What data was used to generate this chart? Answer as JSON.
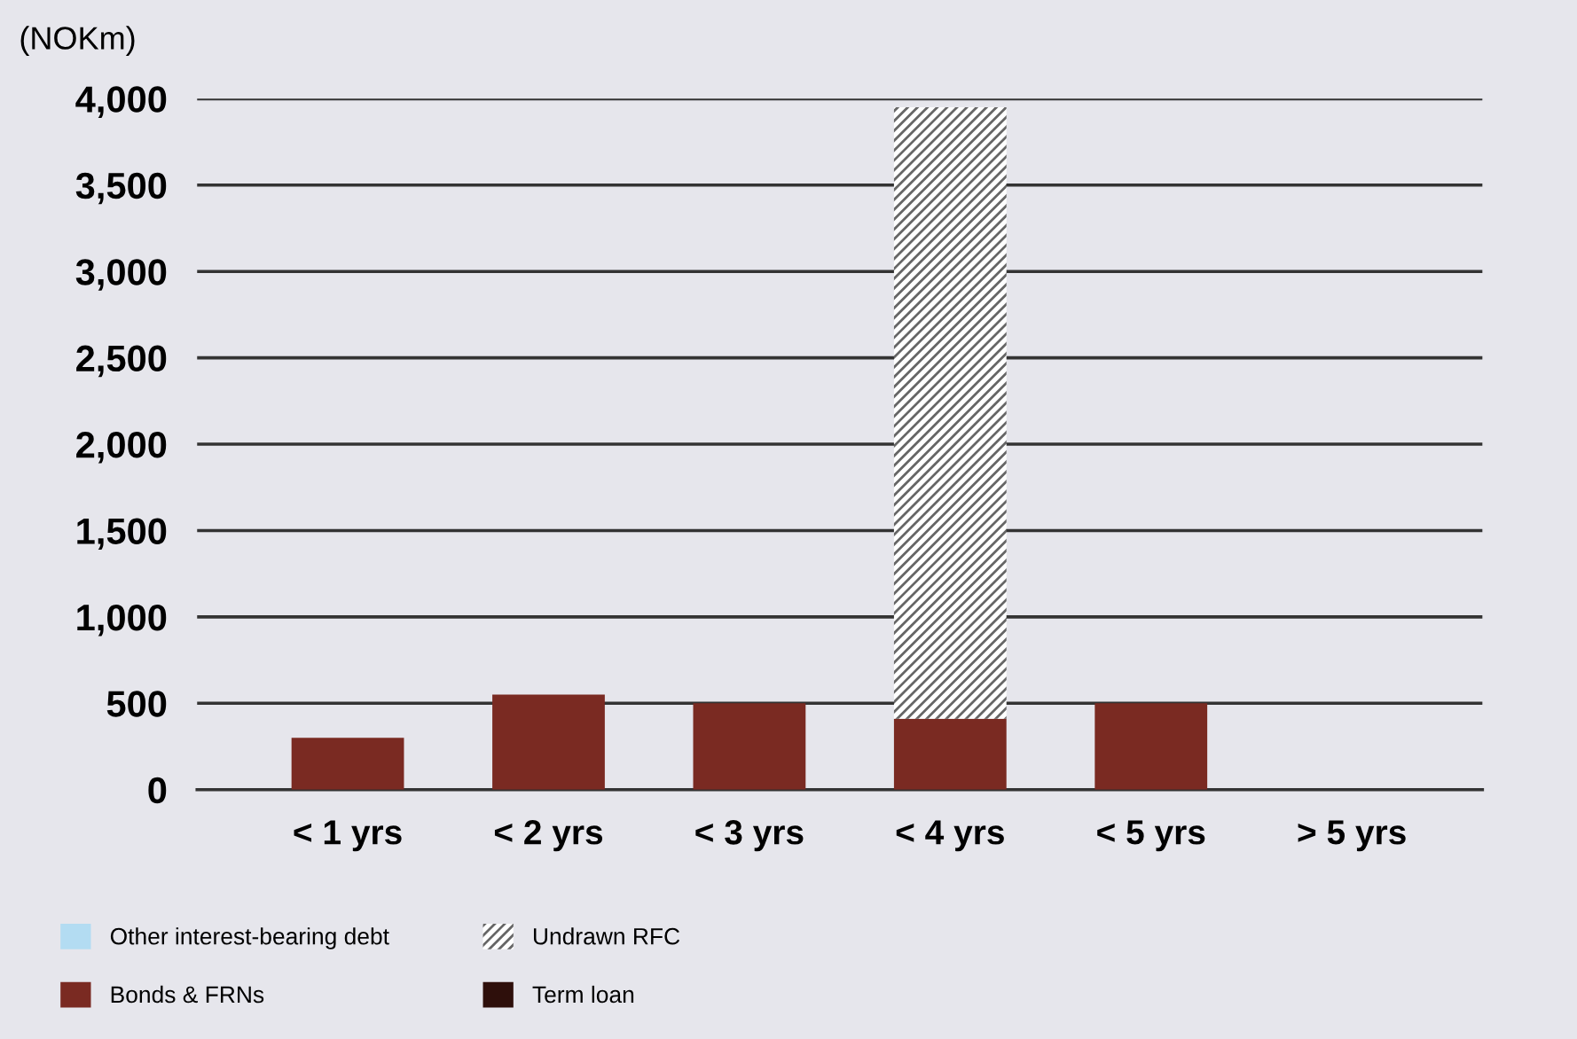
{
  "chart_data": {
    "type": "bar",
    "ylabel": "(NOKm)",
    "stacked": true,
    "categories": [
      "< 1 yrs",
      "< 2 yrs",
      "< 3 yrs",
      "< 4 yrs",
      "< 5 yrs",
      "> 5 yrs"
    ],
    "series": [
      {
        "name": "Other interest-bearing debt",
        "color": "#b3dcf2",
        "values": [
          0,
          0,
          0,
          0,
          0,
          0
        ]
      },
      {
        "name": "Bonds & FRNs",
        "color": "#7a2a22",
        "values": [
          300,
          550,
          500,
          410,
          500,
          0
        ]
      },
      {
        "name": "Undrawn RFC",
        "color": "#ffffff",
        "values": [
          0,
          0,
          0,
          3540,
          0,
          0
        ]
      },
      {
        "name": "Term loan",
        "color": "#2e0f0b",
        "values": [
          0,
          0,
          0,
          0,
          0,
          0
        ]
      }
    ],
    "ylim": [
      0,
      4000
    ],
    "yticks": [
      0,
      500,
      {
        "value": 1000,
        "label": "1,000"
      },
      {
        "value": 1500,
        "label": "1,500"
      },
      {
        "value": 2000,
        "label": "2,000"
      },
      {
        "value": 2500,
        "label": "2,500"
      },
      {
        "value": 3000,
        "label": "3,000"
      },
      {
        "value": 3500,
        "label": "3,500"
      },
      {
        "value": 4000,
        "label": "4,000"
      }
    ],
    "grid": "y",
    "legend": "bottom"
  }
}
